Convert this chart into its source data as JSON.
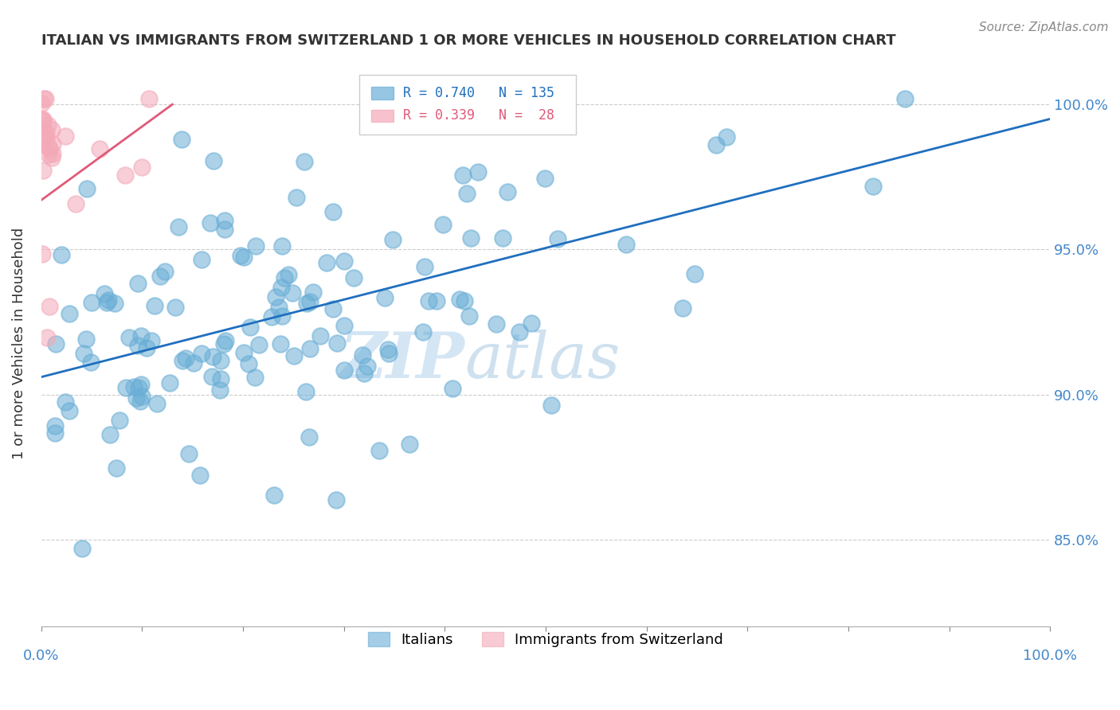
{
  "title": "ITALIAN VS IMMIGRANTS FROM SWITZERLAND 1 OR MORE VEHICLES IN HOUSEHOLD CORRELATION CHART",
  "source": "Source: ZipAtlas.com",
  "ylabel": "1 or more Vehicles in Household",
  "ytick_values": [
    0.85,
    0.9,
    0.95,
    1.0
  ],
  "xlim": [
    0.0,
    1.0
  ],
  "ylim": [
    0.82,
    1.015
  ],
  "legend_italians": "Italians",
  "legend_swiss": "Immigrants from Switzerland",
  "legend_r_blue": "R = 0.740",
  "legend_n_blue": "N = 135",
  "legend_r_pink": "R = 0.339",
  "legend_n_pink": "N =  28",
  "blue_color": "#6aaed6",
  "pink_color": "#f4a9b8",
  "blue_line_color": "#1f6fbf",
  "pink_line_color": "#e05a7a",
  "watermark_zip": "ZIP",
  "watermark_atlas": "atlas",
  "background_color": "#ffffff",
  "grid_color": "#cccccc",
  "title_color": "#333333",
  "axis_label_color": "#4488cc",
  "right_tick_color": "#4488cc"
}
